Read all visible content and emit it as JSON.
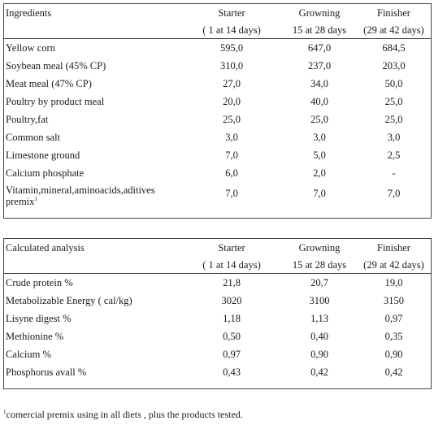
{
  "diets_table": {
    "header": {
      "label": "Ingredients",
      "col1": "Starter",
      "col2": "Growning",
      "col3": "Finisher",
      "col1_sub": "( 1 at 14 days)",
      "col2_sub": "15 at 28  days",
      "col3_sub": "(29 at 42 days)"
    },
    "rows": [
      {
        "label": "Yellow corn",
        "v1": "595,0",
        "v2": "647,0",
        "v3": "684,5"
      },
      {
        "label": "Soybean meal (45% CP)",
        "v1": "310,0",
        "v2": "237,0",
        "v3": "203,0"
      },
      {
        "label": "Meat meal (47% CP)",
        "v1": "27,0",
        "v2": "34,0",
        "v3": "50,0"
      },
      {
        "label": "Poultry by product meal",
        "v1": "20,0",
        "v2": "40,0",
        "v3": "25,0"
      },
      {
        "label": "Poultry,fat",
        "v1": "25,0",
        "v2": "25,0",
        "v3": "25,0"
      },
      {
        "label": "Common salt",
        "v1": "3,0",
        "v2": "3,0",
        "v3": "3,0"
      },
      {
        "label": "Limestone ground",
        "v1": "7,0",
        "v2": "5,0",
        "v3": "2,5"
      },
      {
        "label": "Calcium phosphate",
        "v1": "6,0",
        "v2": "2,0",
        "v3": "-"
      },
      {
        "label": "Vitamin,mineral,aminoacids,aditives premix",
        "sup": "1",
        "v1": "7,0",
        "v2": "7,0",
        "v3": "7,0"
      }
    ]
  },
  "analysis_table": {
    "header": {
      "label": "Calculated analysis",
      "col1": "Starter",
      "col2": "Growning",
      "col3": "Finisher",
      "col1_sub": "( 1 at 14 days)",
      "col2_sub": "15 at 28  days",
      "col3_sub": "(29 at 42 days)"
    },
    "rows": [
      {
        "label": "Crude protein %",
        "v1": "21,8",
        "v2": "20,7",
        "v3": "19,0"
      },
      {
        "label": "Metabolizable Energy ( cal/kg)",
        "v1": "3020",
        "v2": "3100",
        "v3": "3150"
      },
      {
        "label": "Lisyne digest %",
        "v1": "1,18",
        "v2": "1,13",
        "v3": "0,97"
      },
      {
        "label": "Methionine %",
        "v1": "0,50",
        "v2": "0,40",
        "v3": "0,35"
      },
      {
        "label": "Calcium  %",
        "v1": "0,97",
        "v2": "0,90",
        "v3": "0,90"
      },
      {
        "label": "Phosphorus avall %",
        "v1": "0,43",
        "v2": "0,42",
        "v3": "0,42"
      }
    ]
  },
  "footnote": {
    "marker": "1",
    "text": "comercial premix using in all diets , plus the products tested."
  }
}
